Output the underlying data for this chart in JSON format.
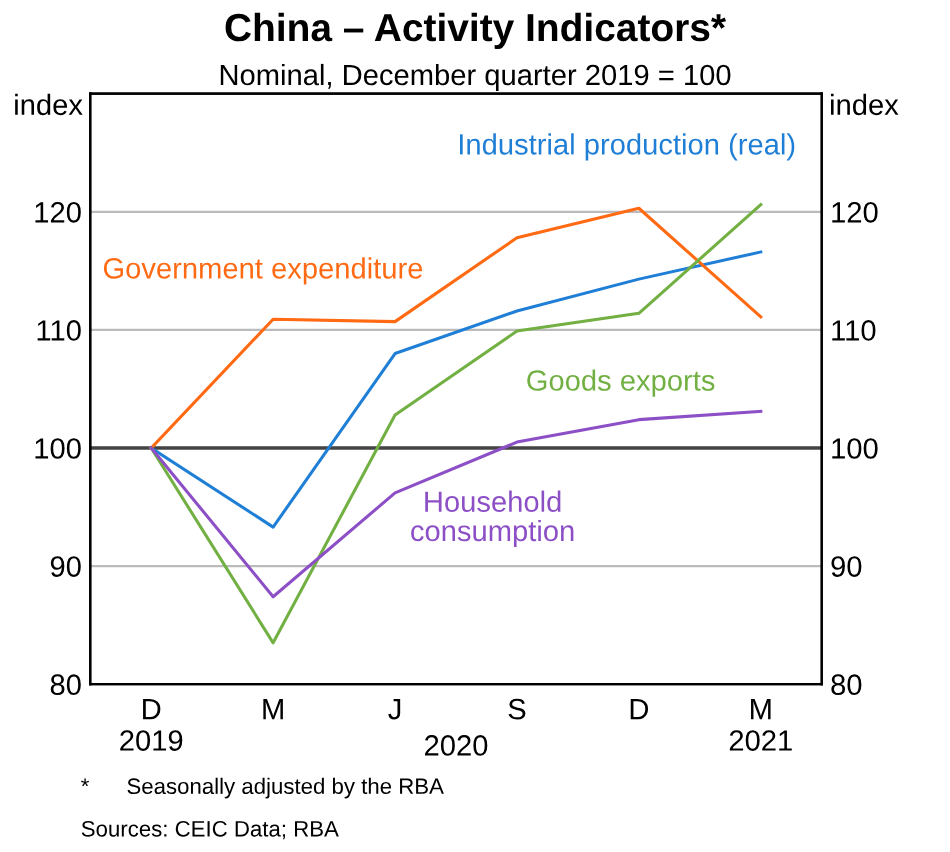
{
  "chart_data": {
    "type": "line",
    "title": "China – Activity Indicators*",
    "subtitle": "Nominal, December quarter 2019 = 100",
    "ylabel": "index",
    "y2label": "index",
    "categories": [
      "D\n2019",
      "M",
      "J",
      "S",
      "D",
      "M\n2021"
    ],
    "series": [
      {
        "name": "Industrial production (real)",
        "color": "#1f7fd6",
        "values": [
          100,
          93.3,
          108.0,
          111.6,
          114.3,
          116.6
        ]
      },
      {
        "name": "Government expenditure",
        "color": "#ff6a13",
        "values": [
          100,
          110.9,
          110.7,
          117.8,
          120.3,
          111.1
        ]
      },
      {
        "name": "Goods exports",
        "color": "#72b043",
        "values": [
          100,
          83.5,
          102.8,
          109.9,
          111.4,
          120.6
        ]
      },
      {
        "name": "Household\nconsumption",
        "color": "#8c4fc6",
        "values": [
          100,
          87.4,
          96.2,
          100.5,
          102.4,
          103.1
        ]
      }
    ],
    "ylim": [
      80,
      130
    ],
    "yticks": [
      80,
      90,
      100,
      110,
      120
    ],
    "y2lim": [
      80,
      130
    ],
    "y2ticks": [
      80,
      90,
      100,
      110,
      120
    ],
    "ref_lines": [
      {
        "axis": "y",
        "value": 100,
        "color": "#444444"
      }
    ],
    "grid": "y",
    "legend": false,
    "marker": "none",
    "line_style": "solid",
    "annotations": [
      "2020",
      "*      Seasonally adjusted by the RBA",
      "Sources: CEIC Data; RBA"
    ]
  }
}
